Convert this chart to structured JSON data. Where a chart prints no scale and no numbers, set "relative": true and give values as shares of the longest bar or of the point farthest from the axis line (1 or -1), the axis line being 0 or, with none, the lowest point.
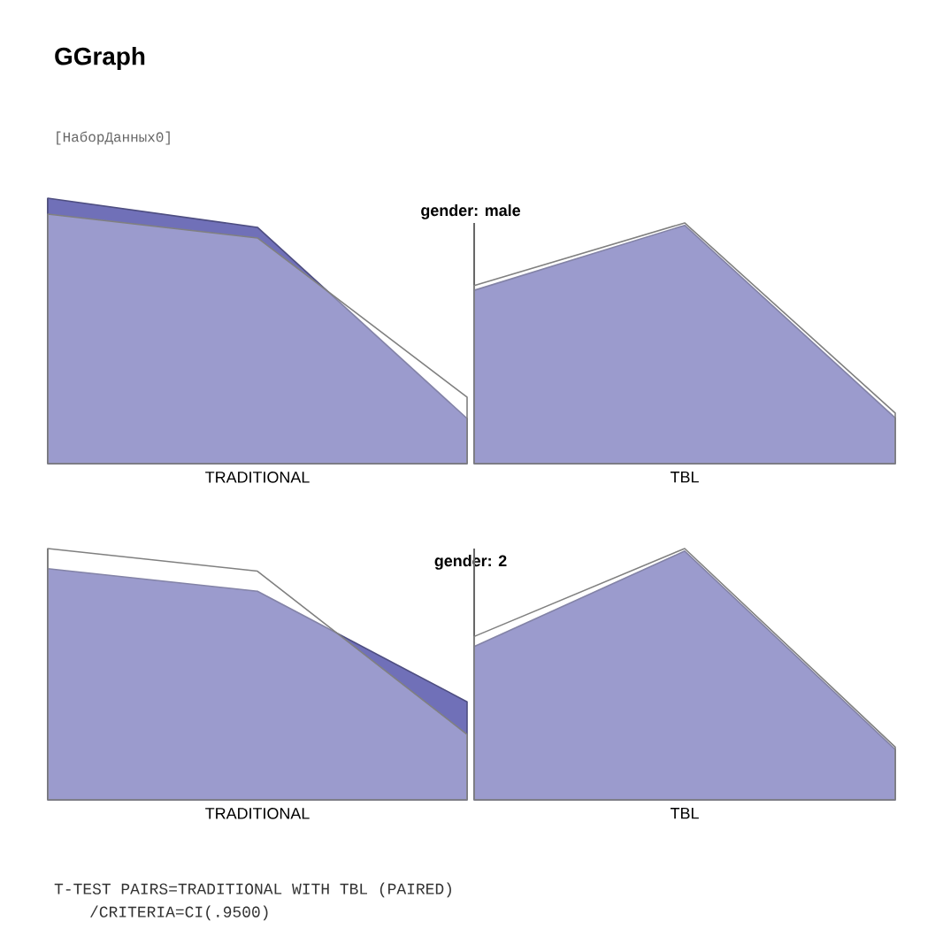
{
  "chart_data": [
    {
      "type": "area",
      "relative": true,
      "title": "gender: male",
      "xlabel": "TRADITIONAL",
      "categories": [
        null,
        null,
        null
      ],
      "annotations": [
        "GGraph",
        "[НаборДанных0]"
      ],
      "series": [
        {
          "color": "#ffffff",
          "values": [
            0.94,
            0.85,
            0.25
          ]
        },
        {
          "color": "#7070b8",
          "values": [
            1,
            0.89,
            0.17
          ]
        }
      ]
    },
    {
      "type": "area",
      "relative": true,
      "xlabel": "TBL",
      "categories": [
        null,
        null,
        null
      ],
      "series": [
        {
          "color": "#ffffff",
          "values": [
            0.74,
            1,
            0.21
          ]
        },
        {
          "color": "#7070b8",
          "values": [
            0.72,
            0.99,
            0.19
          ]
        }
      ]
    },
    {
      "type": "area",
      "relative": true,
      "title": "gender: 2",
      "xlabel": "TRADITIONAL",
      "categories": [
        null,
        null,
        null
      ],
      "series": [
        {
          "color": "#ffffff",
          "values": [
            1,
            0.91,
            0.26
          ]
        },
        {
          "color": "#7070b8",
          "values": [
            0.92,
            0.83,
            0.39
          ]
        }
      ]
    },
    {
      "type": "area",
      "relative": true,
      "xlabel": "TBL",
      "categories": [
        null,
        null,
        null
      ],
      "annotations": [
        "T-TEST PAIRS=TRADITIONAL WITH TBL (PAIRED)",
        "/CRITERIA=CI(.9500)"
      ],
      "series": [
        {
          "color": "#ffffff",
          "values": [
            0.65,
            1,
            0.21
          ]
        },
        {
          "color": "#7070b8",
          "values": [
            0.61,
            0.99,
            0.2
          ]
        }
      ]
    }
  ]
}
